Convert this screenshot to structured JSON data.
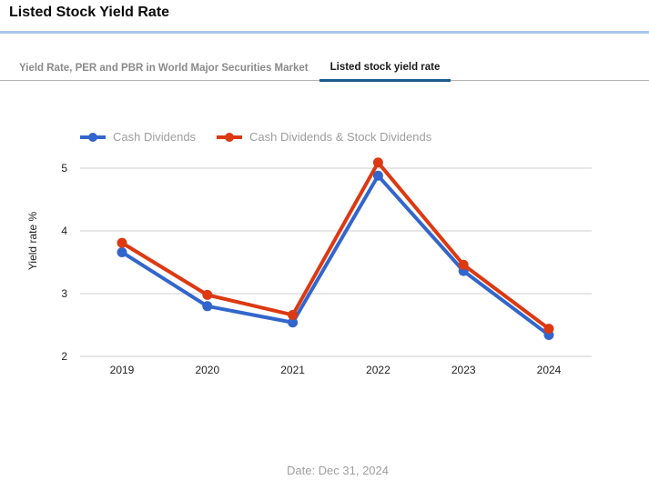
{
  "page": {
    "title": "Listed Stock Yield Rate",
    "date_note": "Date: Dec 31, 2024"
  },
  "tabs": [
    {
      "label": "Yield Rate, PER and PBR in World Major Securities Market",
      "active": false
    },
    {
      "label": "Listed stock yield rate",
      "active": true
    }
  ],
  "colors": {
    "top_divider": "#aac7e8",
    "tab_underline": "#1e5b8d",
    "tab_bottom_line": "#b3b3b3",
    "gridline": "#cccccc",
    "axis_text": "#222222",
    "legend_text": "#9e9e9e",
    "series_blue": "#3366cc",
    "series_red": "#dc3912"
  },
  "chart_data": {
    "type": "line",
    "x": [
      "2019",
      "2020",
      "2021",
      "2022",
      "2023",
      "2024"
    ],
    "series": [
      {
        "name": "Cash Dividends",
        "color": "#3366cc",
        "values": [
          3.66,
          2.8,
          2.54,
          4.88,
          3.36,
          2.34
        ]
      },
      {
        "name": "Cash Dividends & Stock Dividends",
        "color": "#dc3912",
        "values": [
          3.81,
          2.98,
          2.66,
          5.09,
          3.46,
          2.44
        ]
      }
    ],
    "title": "",
    "xlabel": "",
    "ylabel": "Yield rate %",
    "yticks": [
      2,
      3,
      4,
      5
    ],
    "ylim": [
      2,
      5.2
    ],
    "grid": true,
    "legend_position": "top"
  }
}
